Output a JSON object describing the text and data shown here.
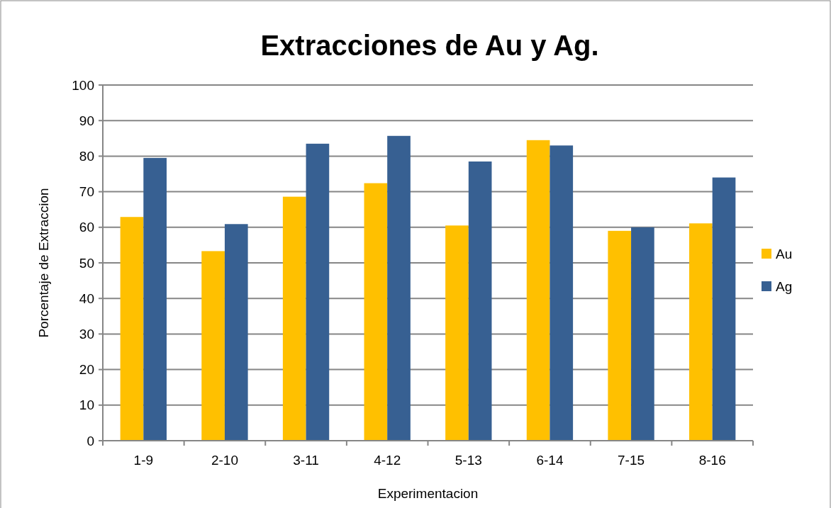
{
  "chart_data": {
    "type": "bar",
    "title": "Extracciones de Au y Ag.",
    "xlabel": "Experimentacion",
    "ylabel": "Porcentaje  de Extraccion",
    "categories": [
      "1-9",
      "2-10",
      "3-11",
      "4-12",
      "5-13",
      "6-14",
      "7-15",
      "8-16"
    ],
    "series": [
      {
        "name": "Au",
        "color": "#ffc000",
        "values": [
          62.9,
          53.3,
          68.6,
          72.4,
          60.5,
          84.5,
          59.0,
          61.1
        ]
      },
      {
        "name": "Ag",
        "color": "#376092",
        "values": [
          79.5,
          60.9,
          83.5,
          85.7,
          78.5,
          83.0,
          60.0,
          74.0
        ]
      }
    ],
    "ylim": [
      0,
      100
    ],
    "yticks": [
      0,
      10,
      20,
      30,
      40,
      50,
      60,
      70,
      80,
      90,
      100
    ],
    "grid": "y",
    "legend": "right"
  }
}
